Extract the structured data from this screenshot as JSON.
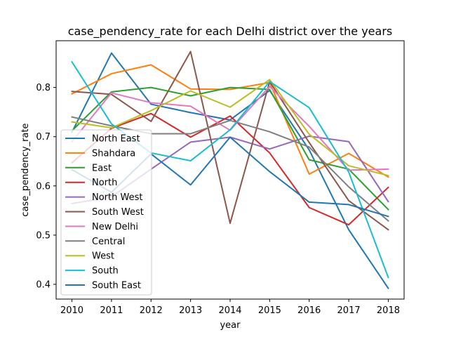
{
  "chart_data": {
    "type": "line",
    "title": "case_pendency_rate for each Delhi district over the years",
    "xlabel": "year",
    "ylabel": "case_pendency_rate",
    "x": [
      2010,
      2011,
      2012,
      2013,
      2014,
      2015,
      2016,
      2017,
      2018
    ],
    "xlim": [
      2009.6,
      2018.4
    ],
    "ylim": [
      0.37,
      0.895
    ],
    "yticks": [
      "0.4",
      "0.5",
      "0.6",
      "0.7",
      "0.8"
    ],
    "grid": false,
    "legend_position": "lower-left",
    "series": [
      {
        "name": "North East",
        "color": "#1f77b4",
        "values": [
          0.709,
          0.87,
          0.766,
          0.749,
          0.734,
          0.794,
          0.673,
          0.511,
          0.392
        ]
      },
      {
        "name": "Shahdara",
        "color": "#ff7f0e",
        "values": [
          0.787,
          0.828,
          0.846,
          0.797,
          0.796,
          0.81,
          0.624,
          0.666,
          0.618
        ]
      },
      {
        "name": "East",
        "color": "#2ca02c",
        "values": [
          0.712,
          0.791,
          0.8,
          0.783,
          0.8,
          0.796,
          0.653,
          0.634,
          0.552
        ]
      },
      {
        "name": "North",
        "color": "#d62728",
        "values": [
          0.647,
          0.717,
          0.747,
          0.699,
          0.742,
          0.667,
          0.556,
          0.521,
          0.597
        ]
      },
      {
        "name": "North West",
        "color": "#9467bd",
        "values": [
          0.564,
          0.578,
          0.634,
          0.689,
          0.699,
          0.675,
          0.701,
          0.69,
          0.568
        ]
      },
      {
        "name": "South West",
        "color": "#8c564b",
        "values": [
          0.792,
          0.786,
          0.731,
          0.873,
          0.524,
          0.812,
          0.688,
          0.57,
          0.511
        ]
      },
      {
        "name": "New Delhi",
        "color": "#e377c2",
        "values": [
          0.69,
          0.789,
          0.769,
          0.762,
          0.713,
          0.802,
          0.721,
          0.632,
          0.634
        ]
      },
      {
        "name": "Central",
        "color": "#7f7f7f",
        "values": [
          0.74,
          0.722,
          0.706,
          0.706,
          0.733,
          0.71,
          0.679,
          0.598,
          0.529
        ]
      },
      {
        "name": "West",
        "color": "#bcbd22",
        "values": [
          0.73,
          0.718,
          0.753,
          0.793,
          0.76,
          0.816,
          0.705,
          0.641,
          0.621
        ]
      },
      {
        "name": "South",
        "color": "#17becf",
        "values": [
          0.852,
          0.726,
          0.667,
          0.651,
          0.714,
          0.812,
          0.759,
          0.628,
          0.414
        ]
      },
      {
        "name": "South East",
        "color": "#1f77b4",
        "values": [
          0.633,
          0.587,
          0.665,
          0.602,
          0.699,
          0.629,
          0.567,
          0.562,
          0.538
        ]
      }
    ]
  }
}
